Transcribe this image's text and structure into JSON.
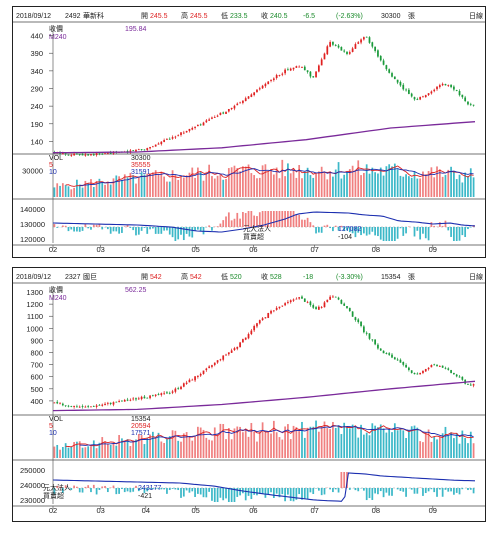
{
  "colors": {
    "up": "#e02020",
    "down": "#1a9a3a",
    "ma240": "#7a2a9a",
    "volume_up": "#f08080",
    "volume_down": "#3cb8c8",
    "line": "#1c2fb0",
    "positive_bar": "#f08080",
    "negative_bar": "#3cb8c8"
  },
  "chart_data": [
    {
      "type": "candlestick",
      "header": {
        "date": "2018/09/12",
        "code": "2492",
        "name": "華新科",
        "open_label": "開",
        "open": "245.5",
        "high_label": "高",
        "high": "245.5",
        "low_label": "低",
        "low": "233.5",
        "close_label": "收",
        "close": "240.5",
        "change": "-6.5",
        "change_pct": "(-2.63%)",
        "volume": "30300",
        "volume_unit": "張",
        "mode": "日線"
      },
      "price_legend": {
        "label": "收價",
        "ma_label": "M240",
        "ma_value": "195.84"
      },
      "price_ticks": [
        140,
        190,
        240,
        290,
        340,
        390,
        440
      ],
      "price_ylim": [
        110,
        470
      ],
      "months": [
        "02",
        "03",
        "04",
        "05",
        "06",
        "07",
        "08",
        "09"
      ],
      "month_x": [
        0.0,
        0.113,
        0.22,
        0.338,
        0.475,
        0.62,
        0.765,
        0.9
      ],
      "price_points": [
        [
          0.0,
          108
        ],
        [
          0.04,
          104
        ],
        [
          0.09,
          103
        ],
        [
          0.13,
          106
        ],
        [
          0.18,
          112
        ],
        [
          0.2,
          117
        ],
        [
          0.22,
          119
        ],
        [
          0.26,
          140
        ],
        [
          0.3,
          162
        ],
        [
          0.34,
          182
        ],
        [
          0.38,
          208
        ],
        [
          0.42,
          232
        ],
        [
          0.46,
          262
        ],
        [
          0.5,
          300
        ],
        [
          0.53,
          325
        ],
        [
          0.56,
          348
        ],
        [
          0.585,
          352
        ],
        [
          0.6,
          340
        ],
        [
          0.615,
          320
        ],
        [
          0.635,
          365
        ],
        [
          0.655,
          425
        ],
        [
          0.675,
          405
        ],
        [
          0.7,
          385
        ],
        [
          0.72,
          420
        ],
        [
          0.74,
          440
        ],
        [
          0.76,
          400
        ],
        [
          0.78,
          360
        ],
        [
          0.8,
          330
        ],
        [
          0.82,
          300
        ],
        [
          0.84,
          280
        ],
        [
          0.86,
          258
        ],
        [
          0.88,
          270
        ],
        [
          0.9,
          285
        ],
        [
          0.92,
          302
        ],
        [
          0.94,
          297
        ],
        [
          0.96,
          280
        ],
        [
          0.975,
          255
        ],
        [
          0.99,
          242
        ],
        [
          1.0,
          240.5
        ]
      ],
      "ma240_points": [
        [
          0.0,
          108
        ],
        [
          0.2,
          110
        ],
        [
          0.4,
          122
        ],
        [
          0.6,
          145
        ],
        [
          0.8,
          178
        ],
        [
          1.0,
          196
        ]
      ],
      "volume_legend": {
        "label": "VOL",
        "vol": "30300",
        "ma5_label": "5",
        "ma5": "35555",
        "ma10_label": "10",
        "ma10": "31591"
      },
      "volume_ticks": [
        "30000"
      ],
      "volume_ylim": [
        0,
        45000
      ],
      "inst_legend": {
        "name": "元大法人",
        "value": "127082",
        "diff_label": "買賣超",
        "diff": "-104"
      },
      "inst_ticks": [
        "140000",
        "130000",
        "120000"
      ],
      "inst_ylim": [
        110000,
        150000
      ],
      "inst_line": [
        [
          0.0,
          130000
        ],
        [
          0.1,
          129000
        ],
        [
          0.2,
          128000
        ],
        [
          0.28,
          126000
        ],
        [
          0.34,
          122000
        ],
        [
          0.4,
          121000
        ],
        [
          0.45,
          124000
        ],
        [
          0.5,
          128000
        ],
        [
          0.55,
          134000
        ],
        [
          0.58,
          139000
        ],
        [
          0.62,
          141000
        ],
        [
          0.66,
          140500
        ],
        [
          0.7,
          140000
        ],
        [
          0.74,
          138000
        ],
        [
          0.78,
          137000
        ],
        [
          0.82,
          132000
        ],
        [
          0.86,
          131000
        ],
        [
          0.9,
          129000
        ],
        [
          0.94,
          130000
        ],
        [
          0.97,
          128000
        ],
        [
          1.0,
          127082
        ]
      ]
    },
    {
      "type": "candlestick",
      "header": {
        "date": "2018/09/12",
        "code": "2327",
        "name": "國巨",
        "open_label": "開",
        "open": "542",
        "high_label": "高",
        "high": "542",
        "low_label": "低",
        "low": "520",
        "close_label": "收",
        "close": "528",
        "change": "-18",
        "change_pct": "(-3.30%)",
        "volume": "15354",
        "volume_unit": "張",
        "mode": "日線"
      },
      "price_legend": {
        "label": "收價",
        "ma_label": "M240",
        "ma_value": "562.25"
      },
      "price_ticks": [
        400,
        500,
        600,
        700,
        800,
        900,
        1000,
        1100,
        1200,
        1300
      ],
      "price_ylim": [
        300,
        1350
      ],
      "months": [
        "02",
        "03",
        "04",
        "05",
        "06",
        "07",
        "08",
        "09"
      ],
      "month_x": [
        0.0,
        0.113,
        0.22,
        0.338,
        0.475,
        0.62,
        0.765,
        0.9
      ],
      "price_points": [
        [
          0.0,
          380
        ],
        [
          0.04,
          360
        ],
        [
          0.08,
          348
        ],
        [
          0.12,
          372
        ],
        [
          0.16,
          395
        ],
        [
          0.2,
          420
        ],
        [
          0.24,
          440
        ],
        [
          0.28,
          475
        ],
        [
          0.32,
          560
        ],
        [
          0.36,
          650
        ],
        [
          0.4,
          760
        ],
        [
          0.44,
          860
        ],
        [
          0.48,
          1030
        ],
        [
          0.52,
          1150
        ],
        [
          0.55,
          1200
        ],
        [
          0.58,
          1260
        ],
        [
          0.6,
          1220
        ],
        [
          0.62,
          1160
        ],
        [
          0.64,
          1190
        ],
        [
          0.66,
          1280
        ],
        [
          0.68,
          1220
        ],
        [
          0.7,
          1150
        ],
        [
          0.72,
          1060
        ],
        [
          0.74,
          960
        ],
        [
          0.76,
          880
        ],
        [
          0.78,
          800
        ],
        [
          0.8,
          770
        ],
        [
          0.82,
          720
        ],
        [
          0.84,
          660
        ],
        [
          0.86,
          620
        ],
        [
          0.88,
          650
        ],
        [
          0.9,
          700
        ],
        [
          0.92,
          690
        ],
        [
          0.94,
          640
        ],
        [
          0.96,
          600
        ],
        [
          0.98,
          540
        ],
        [
          1.0,
          528
        ]
      ],
      "ma240_points": [
        [
          0.0,
          320
        ],
        [
          0.2,
          330
        ],
        [
          0.4,
          370
        ],
        [
          0.6,
          430
        ],
        [
          0.8,
          500
        ],
        [
          1.0,
          562
        ]
      ],
      "volume_legend": {
        "label": "VOL",
        "vol": "15354",
        "ma5_label": "5",
        "ma5": "20594",
        "ma10_label": "10",
        "ma10": "17571"
      },
      "volume_ticks": [],
      "volume_ylim": [
        0,
        28000
      ],
      "inst_legend": {
        "name": "元大法人",
        "value": "243177",
        "diff_label": "買賣超",
        "diff": "-421"
      },
      "inst_ticks": [
        "250000",
        "240000",
        "230000"
      ],
      "inst_ylim": [
        220000,
        260000
      ],
      "inst_line": [
        [
          0.0,
          244000
        ],
        [
          0.1,
          243000
        ],
        [
          0.2,
          242000
        ],
        [
          0.3,
          241000
        ],
        [
          0.38,
          238000
        ],
        [
          0.45,
          233000
        ],
        [
          0.52,
          229000
        ],
        [
          0.58,
          226000
        ],
        [
          0.62,
          224000
        ],
        [
          0.64,
          223500
        ],
        [
          0.67,
          223000
        ],
        [
          0.69,
          222500
        ],
        [
          0.7,
          251000
        ],
        [
          0.74,
          250000
        ],
        [
          0.78,
          248000
        ],
        [
          0.82,
          247000
        ],
        [
          0.86,
          246000
        ],
        [
          0.9,
          245000
        ],
        [
          0.94,
          244000
        ],
        [
          0.97,
          243500
        ],
        [
          1.0,
          243177
        ]
      ]
    }
  ]
}
